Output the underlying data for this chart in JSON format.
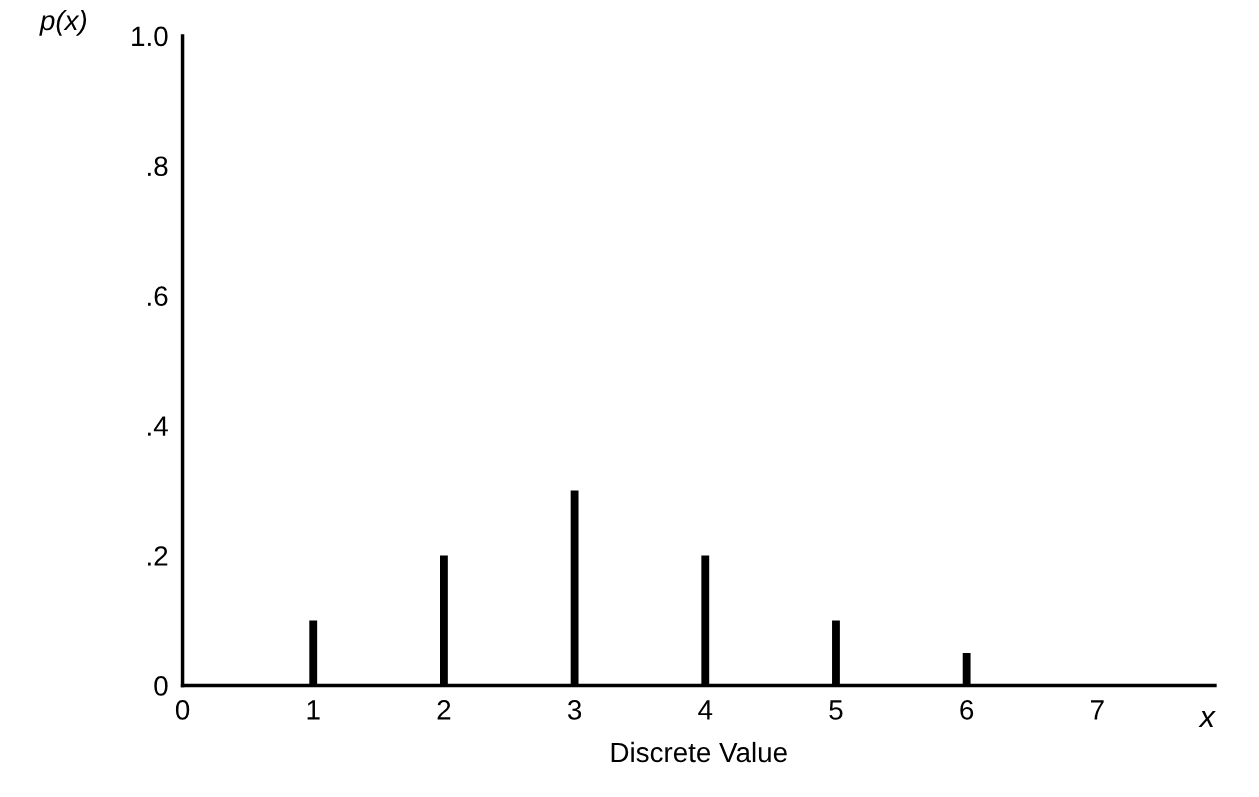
{
  "chart_data": {
    "type": "bar",
    "xlabel": "Discrete Value",
    "ylabel": "p(x)",
    "annotations": [
      "x"
    ],
    "x": [
      1,
      2,
      3,
      4,
      5,
      6
    ],
    "values": [
      0.1,
      0.2,
      0.3,
      0.2,
      0.1,
      0.05
    ],
    "color": "#000000",
    "xlim": [
      0,
      7.9
    ],
    "xticks": [
      0,
      1,
      2,
      3,
      4,
      5,
      6,
      7
    ],
    "ylim": [
      0,
      1.0
    ],
    "yticks": [
      {
        "value": 0,
        "label": "0"
      },
      {
        "value": 0.2,
        "label": ".2"
      },
      {
        "value": 0.4,
        "label": ".4"
      },
      {
        "value": 0.6,
        "label": ".6"
      },
      {
        "value": 0.8,
        "label": ".8"
      },
      {
        "value": 1.0,
        "label": "1.0"
      }
    ],
    "grid": false,
    "legend": false
  }
}
